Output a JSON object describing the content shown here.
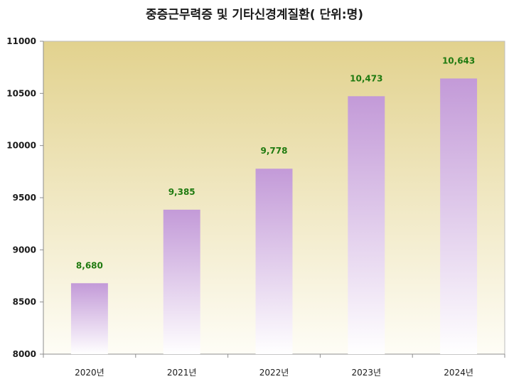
{
  "chart_data": {
    "type": "bar",
    "title": "중증근무력증 및 기타신경계질환( 단위:명)",
    "xlabel": "",
    "ylabel": "",
    "categories": [
      "2020년",
      "2021년",
      "2022년",
      "2023년",
      "2024년"
    ],
    "values": [
      8680,
      9385,
      9778,
      10473,
      10643
    ],
    "value_labels": [
      "8,680",
      "9,385",
      "9,778",
      "10,473",
      "10,643"
    ],
    "ylim": [
      8000,
      11000
    ],
    "yticks": [
      8000,
      8500,
      9000,
      9500,
      10000,
      10500,
      11000
    ],
    "grid": false,
    "legend": "none",
    "colors": {
      "bar_top": "#c39ad8",
      "bar_bottom": "#ffffff",
      "data_label": "#1f7a10",
      "plot_bg_top": "#e2d28e",
      "plot_bg_bottom": "#fefdf6"
    }
  }
}
